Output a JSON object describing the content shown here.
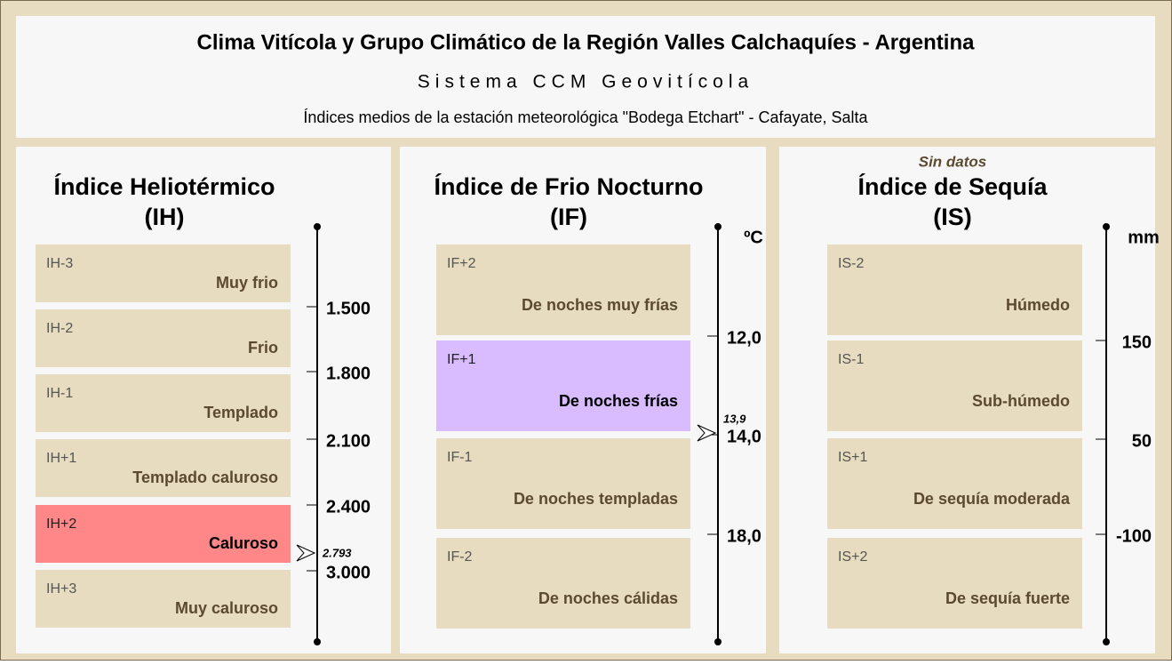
{
  "header": {
    "title": "Clima Vitícola y Grupo Climático de la Región Valles Calchaquíes - Argentina",
    "subtitle": "Sistema CCM Geovitícola",
    "description": "Índices medios de la estación meteorológica \"Bodega Etchart\" - Cafayate, Salta"
  },
  "panels": [
    {
      "title": "Índice Heliotérmico",
      "abbr": "(IH)",
      "classes": [
        {
          "code": "IH-3",
          "label": "Muy frio",
          "color": "#e8dcc0"
        },
        {
          "code": "IH-2",
          "label": "Frio",
          "color": "#e8dcc0"
        },
        {
          "code": "IH-1",
          "label": "Templado",
          "color": "#e8dcc0"
        },
        {
          "code": "IH+1",
          "label": "Templado caluroso",
          "color": "#e8dcc0"
        },
        {
          "code": "IH+2",
          "label": "Caluroso",
          "color": "#ff8787"
        },
        {
          "code": "IH+3",
          "label": "Muy caluroso",
          "color": "#e8dcc0"
        }
      ],
      "ticks": [
        "1.500",
        "1.800",
        "2.100",
        "2.400",
        "3.000"
      ],
      "marker": "2.793"
    },
    {
      "title": "Índice de Frio Nocturno",
      "abbr": "(IF)",
      "unit": "ºC",
      "classes": [
        {
          "code": "IF+2",
          "label": "De noches muy frías",
          "color": "#e8dcc0"
        },
        {
          "code": "IF+1",
          "label": "De noches frías",
          "color": "#d9bbff"
        },
        {
          "code": "IF-1",
          "label": "De noches templadas",
          "color": "#e8dcc0"
        },
        {
          "code": "IF-2",
          "label": "De noches cálidas",
          "color": "#e8dcc0"
        }
      ],
      "ticks": [
        "12,0",
        "14,0",
        "18,0"
      ],
      "marker": "13,9"
    },
    {
      "note": "Sin datos",
      "title": "Índice de Sequía",
      "abbr": "(IS)",
      "unit": "mm",
      "classes": [
        {
          "code": "IS-2",
          "label": "Húmedo",
          "color": "#e8dcc0"
        },
        {
          "code": "IS-1",
          "label": "Sub-húmedo",
          "color": "#e8dcc0"
        },
        {
          "code": "IS+1",
          "label": "De sequía moderada",
          "color": "#e8dcc0"
        },
        {
          "code": "IS+2",
          "label": "De sequía fuerte",
          "color": "#e8dcc0"
        }
      ],
      "ticks": [
        "150",
        "50",
        "-100"
      ]
    }
  ]
}
